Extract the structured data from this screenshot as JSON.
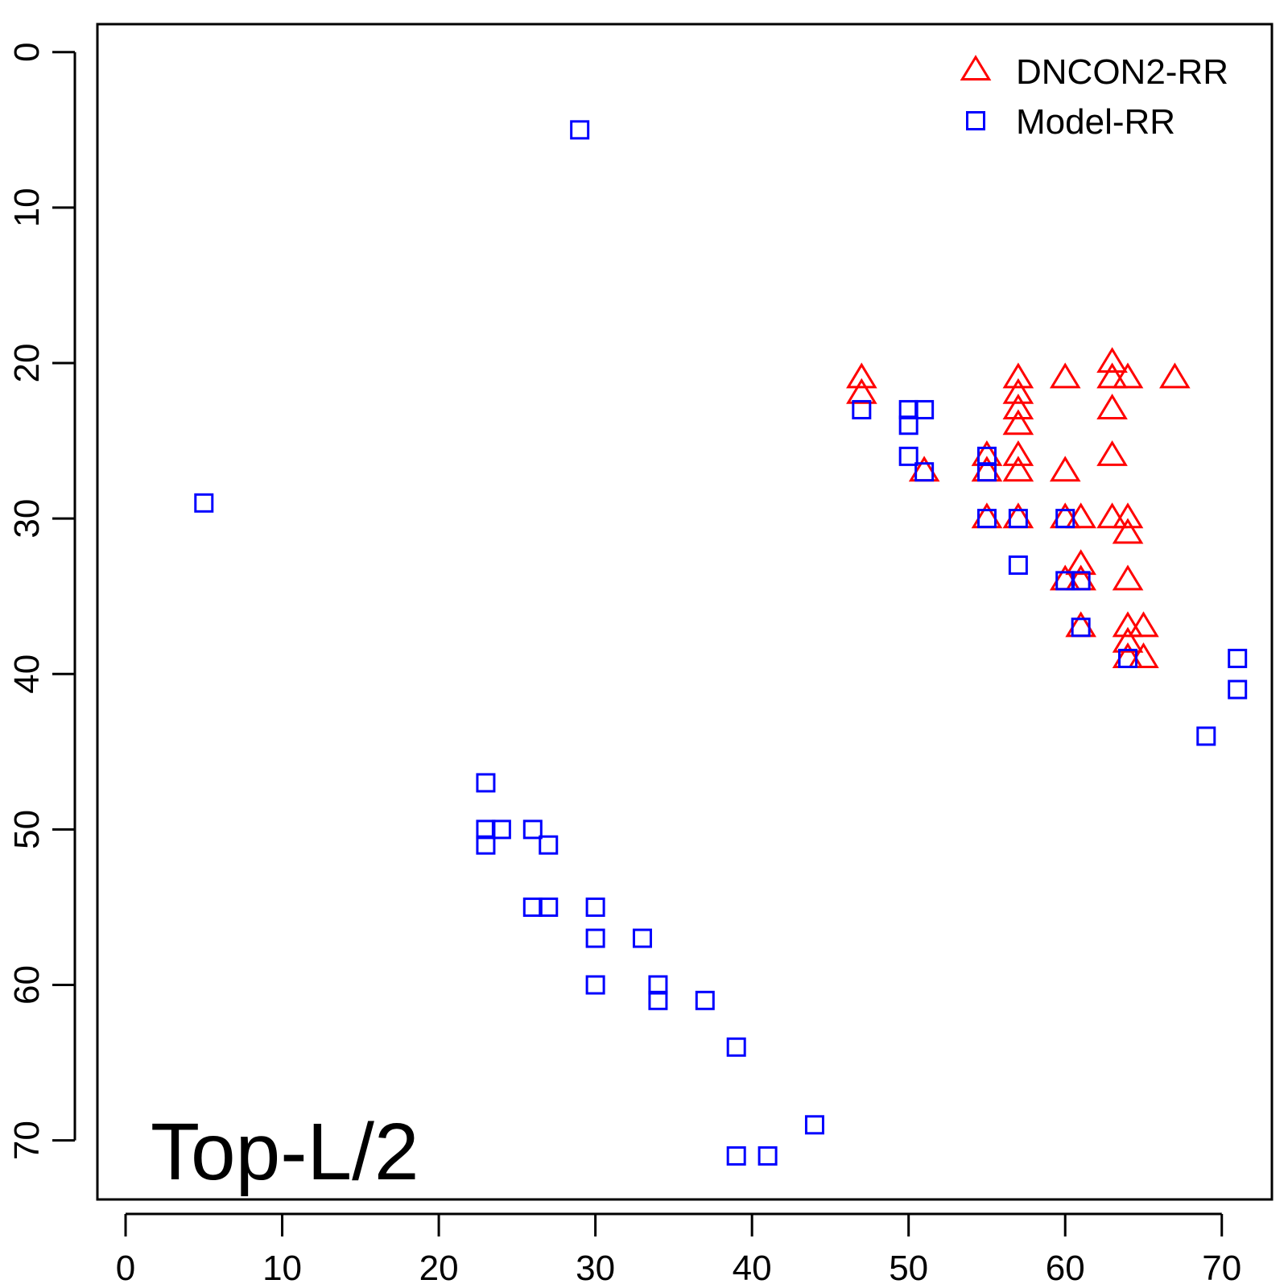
{
  "chart_data": {
    "type": "scatter",
    "title": "",
    "xlabel": "",
    "ylabel": "",
    "xlim": [
      -1.8,
      73.2
    ],
    "ylim": [
      -1.8,
      73.8
    ],
    "y_reversed": true,
    "grid": false,
    "legend_position": "top-right",
    "annotation": "Top-L/2",
    "x_ticks": [
      0,
      10,
      20,
      30,
      40,
      50,
      60,
      70
    ],
    "y_ticks": [
      0,
      10,
      20,
      30,
      40,
      50,
      60,
      70
    ],
    "series": [
      {
        "name": "DNCON2-RR",
        "marker": "triangle",
        "color": "#ff0000",
        "points": [
          [
            47,
            21
          ],
          [
            47,
            22
          ],
          [
            51,
            27
          ],
          [
            55,
            26
          ],
          [
            55,
            27
          ],
          [
            55,
            30
          ],
          [
            57,
            21
          ],
          [
            57,
            22
          ],
          [
            57,
            23
          ],
          [
            57,
            24
          ],
          [
            57,
            26
          ],
          [
            57,
            27
          ],
          [
            57,
            30
          ],
          [
            60,
            21
          ],
          [
            60,
            27
          ],
          [
            60,
            30
          ],
          [
            60,
            34
          ],
          [
            61,
            30
          ],
          [
            61,
            33
          ],
          [
            61,
            34
          ],
          [
            61,
            37
          ],
          [
            63,
            20
          ],
          [
            63,
            21
          ],
          [
            63,
            23
          ],
          [
            63,
            26
          ],
          [
            63,
            30
          ],
          [
            64,
            21
          ],
          [
            64,
            30
          ],
          [
            64,
            31
          ],
          [
            64,
            34
          ],
          [
            64,
            37
          ],
          [
            64,
            38
          ],
          [
            64,
            39
          ],
          [
            65,
            37
          ],
          [
            65,
            39
          ],
          [
            67,
            21
          ]
        ]
      },
      {
        "name": "Model-RR",
        "marker": "square",
        "color": "#0000ff",
        "points": [
          [
            5,
            29
          ],
          [
            29,
            5
          ],
          [
            23,
            47
          ],
          [
            23,
            50
          ],
          [
            23,
            51
          ],
          [
            24,
            50
          ],
          [
            26,
            50
          ],
          [
            27,
            51
          ],
          [
            26,
            55
          ],
          [
            27,
            55
          ],
          [
            30,
            55
          ],
          [
            30,
            57
          ],
          [
            30,
            60
          ],
          [
            33,
            57
          ],
          [
            34,
            60
          ],
          [
            34,
            61
          ],
          [
            37,
            61
          ],
          [
            39,
            64
          ],
          [
            39,
            71
          ],
          [
            41,
            71
          ],
          [
            44,
            69
          ],
          [
            47,
            23
          ],
          [
            50,
            23
          ],
          [
            50,
            24
          ],
          [
            51,
            23
          ],
          [
            50,
            26
          ],
          [
            51,
            27
          ],
          [
            55,
            26
          ],
          [
            55,
            27
          ],
          [
            55,
            30
          ],
          [
            57,
            30
          ],
          [
            57,
            33
          ],
          [
            60,
            30
          ],
          [
            60,
            34
          ],
          [
            61,
            34
          ],
          [
            61,
            37
          ],
          [
            64,
            39
          ],
          [
            69,
            44
          ],
          [
            71,
            39
          ],
          [
            71,
            41
          ]
        ]
      }
    ]
  }
}
